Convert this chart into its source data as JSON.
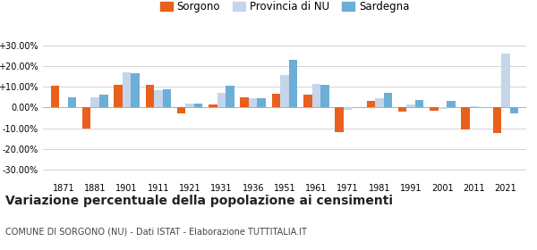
{
  "years": [
    1871,
    1881,
    1901,
    1911,
    1921,
    1931,
    1936,
    1951,
    1961,
    1971,
    1981,
    1991,
    2001,
    2011,
    2021
  ],
  "sorgono": [
    10.5,
    -10.0,
    11.0,
    11.0,
    -3.0,
    1.5,
    5.0,
    6.5,
    6.0,
    -12.0,
    3.0,
    -2.0,
    -1.5,
    -10.5,
    -12.5
  ],
  "provincia_nu": [
    0.0,
    5.0,
    17.0,
    8.5,
    2.0,
    7.0,
    4.5,
    15.5,
    11.5,
    -1.0,
    4.5,
    1.5,
    -0.5,
    0.5,
    26.0
  ],
  "sardegna": [
    5.0,
    6.0,
    16.5,
    9.0,
    2.0,
    10.5,
    4.5,
    23.0,
    11.0,
    0.0,
    7.0,
    3.5,
    3.0,
    0.0,
    -3.0
  ],
  "color_sorgono": "#e8601c",
  "color_provincia": "#c5d5ea",
  "color_sardegna": "#6baed6",
  "title": "Variazione percentuale della popolazione ai censimenti",
  "subtitle": "COMUNE DI SORGONO (NU) - Dati ISTAT - Elaborazione TUTTITALIA.IT",
  "ylabel_ticks": [
    "-30.00%",
    "-20.00%",
    "-10.00%",
    "0.00%",
    "+10.00%",
    "+20.00%",
    "+30.00%"
  ],
  "yticks": [
    -30,
    -20,
    -10,
    0,
    10,
    20,
    30
  ],
  "ylim": [
    -35,
    35
  ],
  "background_color": "#ffffff",
  "grid_color": "#cccccc",
  "title_fontsize": 10,
  "subtitle_fontsize": 7,
  "legend_fontsize": 8.5
}
